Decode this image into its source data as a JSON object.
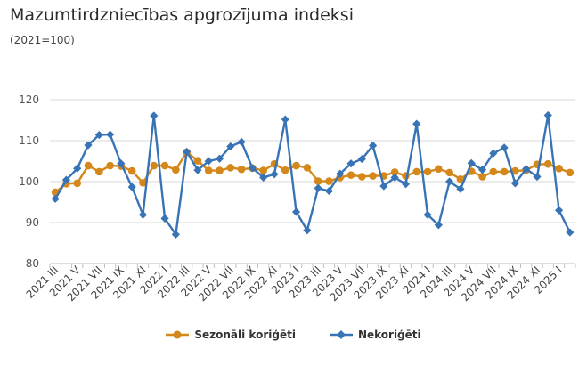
{
  "header": {
    "title": "Mazumtirdzniecības apgrozījuma indeksi",
    "subtitle": "(2021=100)"
  },
  "chart_data": {
    "type": "line",
    "title": "Mazumtirdzniecības apgrozījuma indeksi",
    "subtitle": "(2021=100)",
    "xlabel": "",
    "ylabel": "",
    "ylim": [
      80,
      120
    ],
    "yticks": [
      80,
      90,
      100,
      110,
      120
    ],
    "grid": true,
    "legend_position": "bottom",
    "x": [
      "2021 III",
      "2021 IV",
      "2021 V",
      "2021 VI",
      "2021 VII",
      "2021 VIII",
      "2021 IX",
      "2021 X",
      "2021 XI",
      "2021 XII",
      "2022 I",
      "2022 II",
      "2022 III",
      "2022 IV",
      "2022 V",
      "2022 VI",
      "2022 VII",
      "2022 VIII",
      "2022 IX",
      "2022 X",
      "2022 XI",
      "2022 XII",
      "2023 I",
      "2023 II",
      "2023 III",
      "2023 IV",
      "2023 V",
      "2023 VI",
      "2023 VII",
      "2023 VIII",
      "2023 IX",
      "2023 X",
      "2023 XI",
      "2023 XII",
      "2024 I",
      "2024 II",
      "2024 III",
      "2024 IV",
      "2024 V",
      "2024 VI",
      "2024 VII",
      "2024 VIII",
      "2024 IX",
      "2024 X",
      "2024 XI",
      "2024 XII",
      "2025 I",
      "2025 II"
    ],
    "tick_labels": [
      "2021 III",
      "2021 V",
      "2021 VII",
      "2021 IX",
      "2021 XI",
      "2022 I",
      "2022 III",
      "2022 V",
      "2022 VII",
      "2022 IX",
      "2022 XI",
      "2023 I",
      "2023 III",
      "2023 V",
      "2023 VII",
      "2023 IX",
      "2023 XI",
      "2024 I",
      "2024 III",
      "2024 V",
      "2024 VII",
      "2024 IX",
      "2024 XI",
      "2025 I"
    ],
    "series": [
      {
        "name": "Sezonāli koriģēti",
        "color": "#d4871a",
        "marker": "circle",
        "values": [
          97.4,
          99.5,
          99.6,
          103.9,
          102.4,
          103.9,
          103.8,
          102.6,
          99.7,
          103.9,
          103.9,
          102.9,
          107.2,
          105.1,
          102.7,
          102.7,
          103.4,
          103.0,
          103.3,
          102.7,
          104.3,
          102.8,
          103.9,
          103.4,
          100.1,
          100.1,
          101.0,
          101.6,
          101.2,
          101.4,
          101.4,
          102.3,
          101.4,
          102.4,
          102.4,
          103.1,
          102.2,
          100.6,
          102.5,
          101.2,
          102.4,
          102.4,
          102.6,
          102.8,
          104.2,
          104.3,
          103.2,
          102.2
        ]
      },
      {
        "name": "Nekoriģēti",
        "color": "#3874b5",
        "marker": "diamond",
        "values": [
          95.8,
          100.4,
          103.2,
          108.9,
          111.4,
          111.5,
          104.4,
          98.7,
          91.9,
          116.1,
          91.0,
          87.1,
          107.3,
          102.8,
          105.0,
          105.6,
          108.6,
          109.7,
          103.3,
          101.0,
          101.8,
          115.2,
          92.6,
          88.1,
          98.4,
          97.7,
          101.9,
          104.4,
          105.5,
          108.8,
          98.9,
          101.0,
          99.4,
          114.1,
          91.9,
          89.4,
          100.0,
          98.2,
          104.5,
          102.9,
          106.9,
          108.3,
          99.6,
          103.1,
          101.2,
          116.2,
          93.0,
          87.6
        ]
      }
    ]
  }
}
